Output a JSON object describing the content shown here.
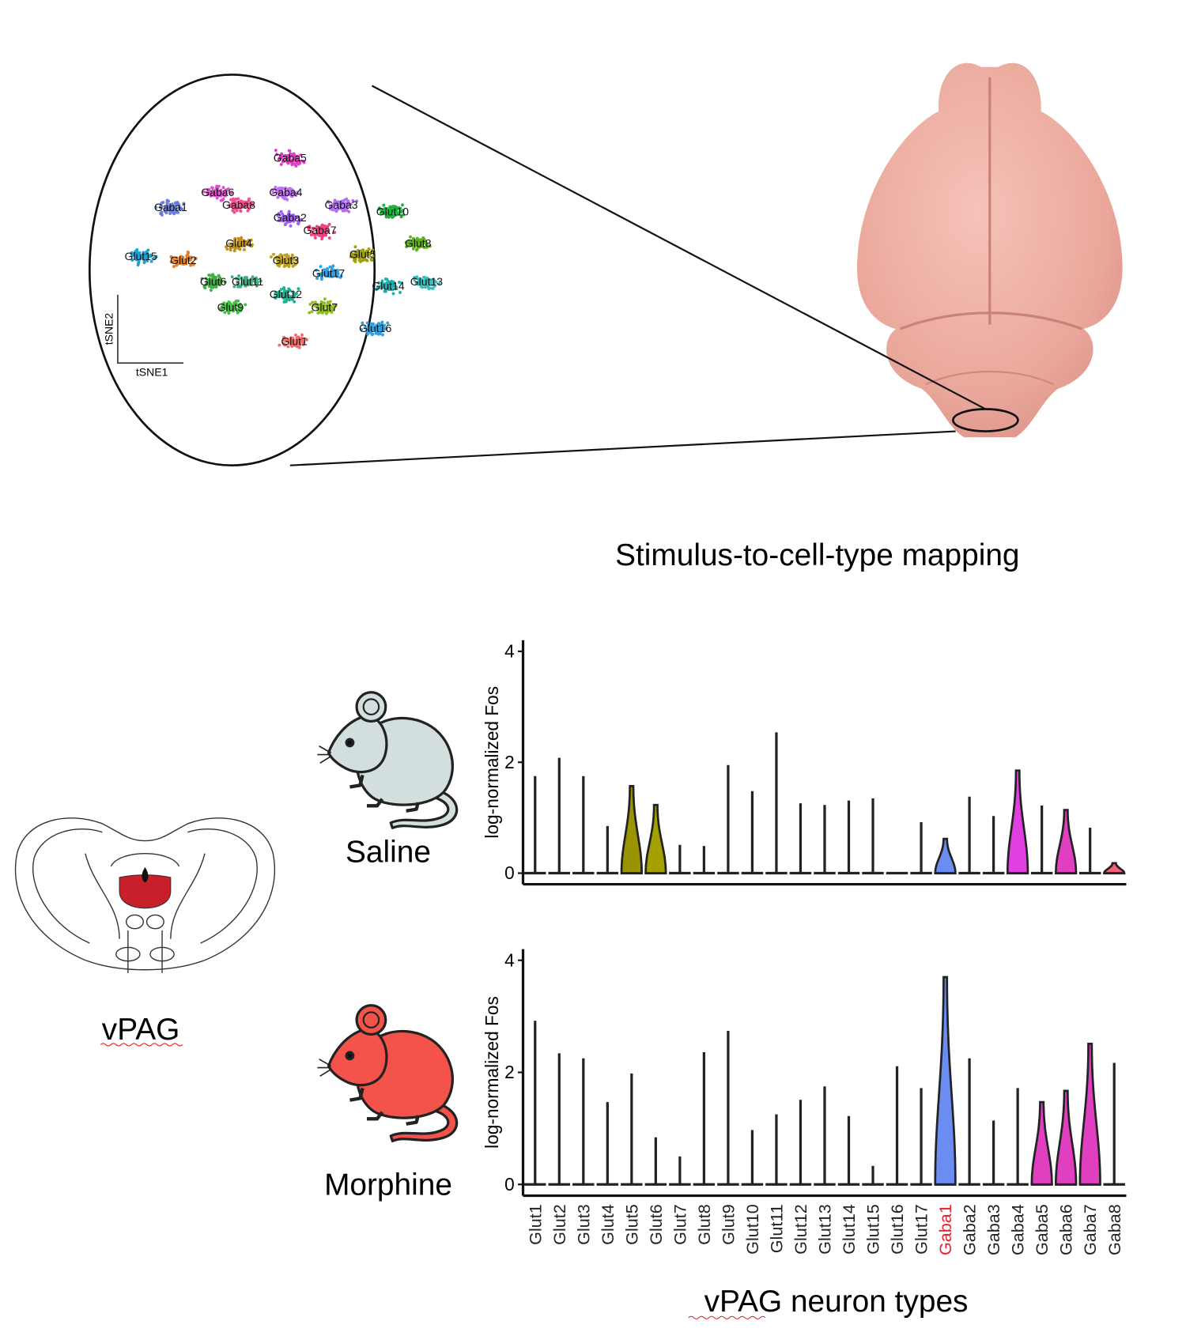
{
  "tsne": {
    "x_label": "tSNE1",
    "y_label": "tSNE2",
    "xlim": [
      0,
      100
    ],
    "ylim": [
      0,
      100
    ],
    "clusters": [
      {
        "label": "Gaba5",
        "x": 52.6,
        "y": 90.7,
        "color": "#e040c0"
      },
      {
        "label": "Gaba4",
        "x": 51.3,
        "y": 75.9,
        "color": "#c070f0"
      },
      {
        "label": "Gaba1",
        "x": 15.8,
        "y": 69.3,
        "color": "#6b7fe0"
      },
      {
        "label": "Gaba6",
        "x": 30.3,
        "y": 75.9,
        "color": "#e050d0"
      },
      {
        "label": "Gaba8",
        "x": 36.8,
        "y": 70.4,
        "color": "#f05090"
      },
      {
        "label": "Gaba2",
        "x": 52.6,
        "y": 64.8,
        "color": "#a060f0"
      },
      {
        "label": "Gaba3",
        "x": 68.4,
        "y": 70.4,
        "color": "#b070f0"
      },
      {
        "label": "Glut10",
        "x": 84.2,
        "y": 67.4,
        "color": "#20b040"
      },
      {
        "label": "Gaba7",
        "x": 61.8,
        "y": 59.3,
        "color": "#f04080"
      },
      {
        "label": "Glut8",
        "x": 92.1,
        "y": 53.7,
        "color": "#60b020"
      },
      {
        "label": "Glut15",
        "x": 6.6,
        "y": 48.1,
        "color": "#20a0d0"
      },
      {
        "label": "Glut2",
        "x": 19.7,
        "y": 46.3,
        "color": "#e08030"
      },
      {
        "label": "Glut4",
        "x": 36.8,
        "y": 53.7,
        "color": "#c09020"
      },
      {
        "label": "Glut3",
        "x": 51.3,
        "y": 46.3,
        "color": "#c0a020"
      },
      {
        "label": "Glut5",
        "x": 75.0,
        "y": 48.9,
        "color": "#a0a010"
      },
      {
        "label": "Glut17",
        "x": 64.5,
        "y": 40.7,
        "color": "#30a0e0"
      },
      {
        "label": "Glut14",
        "x": 82.9,
        "y": 35.2,
        "color": "#20b0b0"
      },
      {
        "label": "Glut13",
        "x": 94.7,
        "y": 37.0,
        "color": "#30c0c0"
      },
      {
        "label": "Glut6",
        "x": 28.9,
        "y": 37.0,
        "color": "#40b040"
      },
      {
        "label": "Glut11",
        "x": 39.5,
        "y": 37.0,
        "color": "#40b080"
      },
      {
        "label": "Glut12",
        "x": 51.3,
        "y": 31.5,
        "color": "#20b090"
      },
      {
        "label": "Glut9",
        "x": 34.2,
        "y": 25.9,
        "color": "#40c040"
      },
      {
        "label": "Glut7",
        "x": 63.2,
        "y": 25.9,
        "color": "#90c020"
      },
      {
        "label": "Glut1",
        "x": 53.9,
        "y": 11.1,
        "color": "#f07070"
      },
      {
        "label": "Glut16",
        "x": 78.9,
        "y": 16.7,
        "color": "#30a0e0"
      }
    ]
  },
  "caption": "Stimulus-to-cell-type mapping",
  "region_label": "vPAG",
  "chart_data": [
    {
      "type": "violin",
      "condition": "Saline",
      "color": "#d3dfdf",
      "y_label": "log-normalized Fos",
      "ylim": [
        -0.2,
        4.2
      ],
      "yticks": [
        0,
        2,
        4
      ],
      "values": [
        1.75,
        2.08,
        1.75,
        0.85,
        1.57,
        1.23,
        0.51,
        0.49,
        1.95,
        1.48,
        2.54,
        1.26,
        1.23,
        1.31,
        1.35,
        0,
        0.92,
        0.62,
        1.38,
        1.03,
        1.85,
        1.22,
        1.14,
        0.82,
        0.18
      ],
      "violin_colors": [
        null,
        null,
        null,
        null,
        "#9a9400",
        "#a3a000",
        null,
        null,
        null,
        null,
        null,
        null,
        null,
        null,
        null,
        null,
        null,
        "#6b8cf0",
        null,
        null,
        "#e040e0",
        null,
        "#e040c0",
        null,
        "#f0607a"
      ]
    },
    {
      "type": "violin",
      "condition": "Morphine",
      "color": "#f4534b",
      "y_label": "log-normalized Fos",
      "ylim": [
        -0.2,
        4.2
      ],
      "yticks": [
        0,
        2,
        4
      ],
      "categories": [
        "Glut1",
        "Glut2",
        "Glut3",
        "Glut4",
        "Glut5",
        "Glut6",
        "Glut7",
        "Glut8",
        "Glut9",
        "Glut10",
        "Glut11",
        "Glut12",
        "Glut13",
        "Glut14",
        "Glut15",
        "Glut16",
        "Glut17",
        "Gaba1",
        "Gaba2",
        "Gaba3",
        "Gaba4",
        "Gaba5",
        "Gaba6",
        "Gaba7",
        "Gaba8"
      ],
      "x_label": "vPAG neuron types",
      "highlight": "Gaba1",
      "highlight_color": "#e8202a",
      "values": [
        2.92,
        2.34,
        2.25,
        1.47,
        1.98,
        0.84,
        0.5,
        2.36,
        2.74,
        0.97,
        1.25,
        1.51,
        1.75,
        1.22,
        0.33,
        2.11,
        1.72,
        3.7,
        2.25,
        1.14,
        1.72,
        1.47,
        1.67,
        2.51,
        2.17
      ],
      "violin_colors": [
        null,
        null,
        null,
        null,
        null,
        null,
        null,
        null,
        null,
        null,
        null,
        null,
        null,
        null,
        null,
        null,
        null,
        "#6b8cf0",
        null,
        null,
        null,
        "#e040c0",
        "#e040c0",
        "#e040c0",
        null
      ]
    }
  ]
}
